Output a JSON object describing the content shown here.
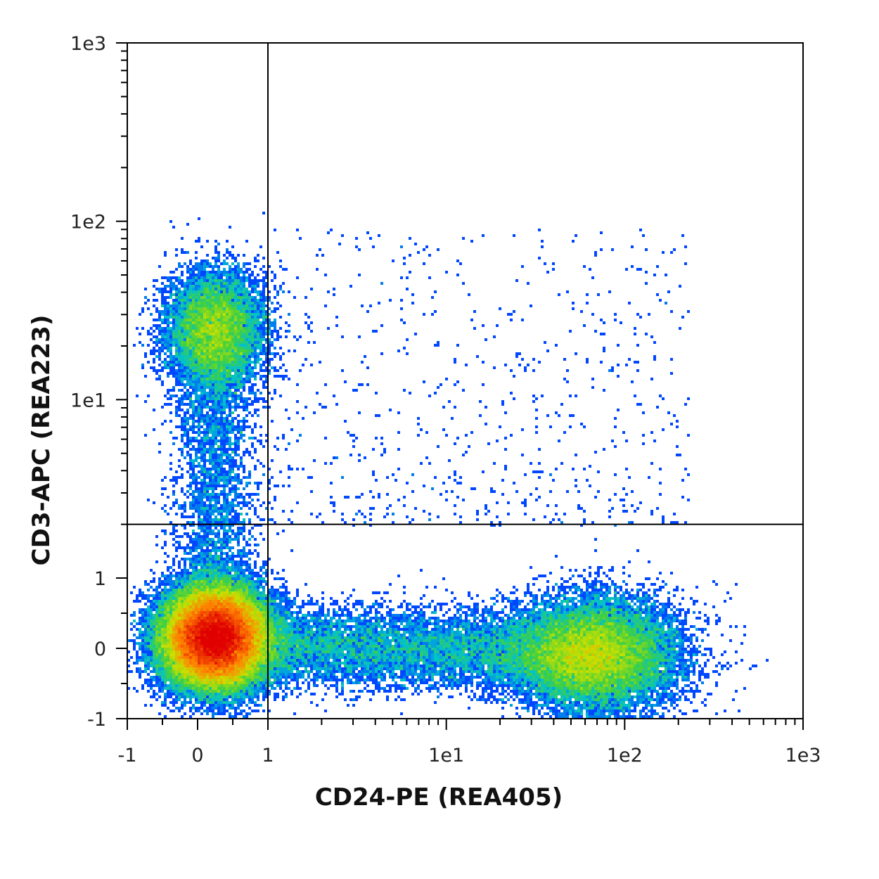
{
  "chart_data": {
    "type": "scatter",
    "subtype": "flow-cytometry-density-dot-plot",
    "title": "",
    "xlabel": "CD24-PE (REA405)",
    "ylabel": "CD3-APC (REA223)",
    "x_scale": "biexponential (linear near 0, log above 1)",
    "y_scale": "biexponential (linear near 0, log above 1)",
    "xlim": [
      -1,
      1000
    ],
    "ylim": [
      -1,
      1000
    ],
    "x_ticks": [
      {
        "value": -1,
        "label": "-1"
      },
      {
        "value": 0,
        "label": "0"
      },
      {
        "value": 1,
        "label": "1"
      },
      {
        "value": 10,
        "label": "1e1"
      },
      {
        "value": 100,
        "label": "1e2"
      },
      {
        "value": 1000,
        "label": "1e3"
      }
    ],
    "y_ticks": [
      {
        "value": -1,
        "label": "-1"
      },
      {
        "value": 0,
        "label": "0"
      },
      {
        "value": 1,
        "label": "1"
      },
      {
        "value": 10,
        "label": "1e1"
      },
      {
        "value": 100,
        "label": "1e2"
      },
      {
        "value": 1000,
        "label": "1e3"
      }
    ],
    "quadrant_gate": {
      "x": 1,
      "y": 2
    },
    "colormap": [
      "#0000ff",
      "#0050ff",
      "#00c0d0",
      "#40d040",
      "#c8e000",
      "#ff8000",
      "#e00000"
    ],
    "populations": [
      {
        "center_x": 0.25,
        "center_y": 0.15,
        "relative_density": "highest"
      },
      {
        "center_x": 0.25,
        "center_y": 25,
        "relative_density": "medium"
      },
      {
        "center_x": 70,
        "center_y": -0.1,
        "relative_density": "medium"
      },
      {
        "center_x": 5,
        "center_y": 0.1,
        "relative_density": "low"
      }
    ],
    "grid": false,
    "legend": "none"
  }
}
